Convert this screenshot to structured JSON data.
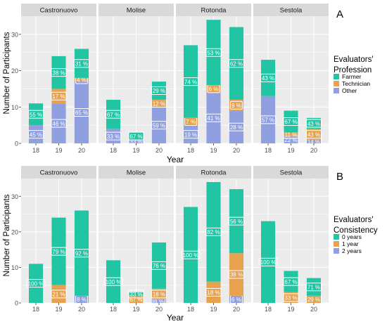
{
  "chart_data": [
    {
      "type": "bar",
      "stacked": true,
      "panel_letter": "A",
      "xlabel": "Year",
      "ylabel": "Number of Participants",
      "ylim": [
        0,
        35
      ],
      "yticks": [
        0,
        10,
        20,
        30
      ],
      "categories": [
        "18",
        "19",
        "20"
      ],
      "legend": {
        "title_lines": [
          "Evaluators'",
          "Profession"
        ],
        "placement": "right",
        "entries": [
          {
            "name": "Farmer",
            "color": "#21c4a3"
          },
          {
            "name": "Technician",
            "color": "#e6a24f"
          },
          {
            "name": "Other",
            "color": "#8f9fe0"
          }
        ]
      },
      "facets": [
        {
          "name": "Castronuovo",
          "bars": [
            {
              "year": "18",
              "segments": [
                {
                  "series": "Other",
                  "value": 5,
                  "label": "45 %"
                },
                {
                  "series": "Technician",
                  "value": 0,
                  "label": ""
                },
                {
                  "series": "Farmer",
                  "value": 6,
                  "label": "55 %"
                }
              ]
            },
            {
              "year": "19",
              "segments": [
                {
                  "series": "Other",
                  "value": 11,
                  "label": "46 %"
                },
                {
                  "series": "Technician",
                  "value": 4,
                  "label": "17 %"
                },
                {
                  "series": "Farmer",
                  "value": 9,
                  "label": "38 %"
                }
              ]
            },
            {
              "year": "20",
              "segments": [
                {
                  "series": "Other",
                  "value": 17,
                  "label": "65 %"
                },
                {
                  "series": "Technician",
                  "value": 1,
                  "label": "4 %"
                },
                {
                  "series": "Farmer",
                  "value": 8,
                  "label": "31 %"
                }
              ]
            }
          ]
        },
        {
          "name": "Molise",
          "bars": [
            {
              "year": "18",
              "segments": [
                {
                  "series": "Other",
                  "value": 4,
                  "label": "33 %"
                },
                {
                  "series": "Technician",
                  "value": 0,
                  "label": ""
                },
                {
                  "series": "Farmer",
                  "value": 8,
                  "label": "67 %"
                }
              ]
            },
            {
              "year": "19",
              "segments": [
                {
                  "series": "Other",
                  "value": 1,
                  "label": "33 %"
                },
                {
                  "series": "Technician",
                  "value": 0,
                  "label": ""
                },
                {
                  "series": "Farmer",
                  "value": 2,
                  "label": "67 %"
                }
              ]
            },
            {
              "year": "20",
              "segments": [
                {
                  "series": "Other",
                  "value": 10,
                  "label": "59 %"
                },
                {
                  "series": "Technician",
                  "value": 2,
                  "label": "12 %"
                },
                {
                  "series": "Farmer",
                  "value": 5,
                  "label": "29 %"
                }
              ]
            }
          ]
        },
        {
          "name": "Rotonda",
          "bars": [
            {
              "year": "18",
              "segments": [
                {
                  "series": "Other",
                  "value": 5,
                  "label": "19 %"
                },
                {
                  "series": "Technician",
                  "value": 2,
                  "label": "7 %"
                },
                {
                  "series": "Farmer",
                  "value": 20,
                  "label": "74 %"
                }
              ]
            },
            {
              "year": "19",
              "segments": [
                {
                  "series": "Other",
                  "value": 14,
                  "label": "41 %"
                },
                {
                  "series": "Technician",
                  "value": 2,
                  "label": "6 %"
                },
                {
                  "series": "Farmer",
                  "value": 18,
                  "label": "53 %"
                }
              ]
            },
            {
              "year": "20",
              "segments": [
                {
                  "series": "Other",
                  "value": 9,
                  "label": "28 %"
                },
                {
                  "series": "Technician",
                  "value": 3,
                  "label": "9 %"
                },
                {
                  "series": "Farmer",
                  "value": 20,
                  "label": "62 %"
                }
              ]
            }
          ]
        },
        {
          "name": "Sestola",
          "bars": [
            {
              "year": "18",
              "segments": [
                {
                  "series": "Other",
                  "value": 13,
                  "label": "57 %"
                },
                {
                  "series": "Technician",
                  "value": 0,
                  "label": ""
                },
                {
                  "series": "Farmer",
                  "value": 10,
                  "label": "43 %"
                }
              ]
            },
            {
              "year": "19",
              "segments": [
                {
                  "series": "Other",
                  "value": 2,
                  "label": "22 %"
                },
                {
                  "series": "Technician",
                  "value": 1,
                  "label": "11 %"
                },
                {
                  "series": "Farmer",
                  "value": 6,
                  "label": "67 %"
                }
              ]
            },
            {
              "year": "20",
              "segments": [
                {
                  "series": "Other",
                  "value": 1,
                  "label": "14 %"
                },
                {
                  "series": "Technician",
                  "value": 3,
                  "label": "43 %"
                },
                {
                  "series": "Farmer",
                  "value": 3,
                  "label": "43 %"
                }
              ]
            }
          ]
        }
      ]
    },
    {
      "type": "bar",
      "stacked": true,
      "panel_letter": "B",
      "xlabel": "Year",
      "ylabel": "Number of Participants",
      "ylim": [
        0,
        35
      ],
      "yticks": [
        0,
        10,
        20,
        30
      ],
      "categories": [
        "18",
        "19",
        "20"
      ],
      "legend": {
        "title_lines": [
          "Evaluators'",
          "Consistency"
        ],
        "placement": "right",
        "entries": [
          {
            "name": "0 years",
            "color": "#21c4a3"
          },
          {
            "name": "1 year",
            "color": "#e6a24f"
          },
          {
            "name": "2 years",
            "color": "#8f9fe0"
          }
        ]
      },
      "facets": [
        {
          "name": "Castronuovo",
          "bars": [
            {
              "year": "18",
              "segments": [
                {
                  "series": "2 years",
                  "value": 0,
                  "label": ""
                },
                {
                  "series": "1 year",
                  "value": 0,
                  "label": ""
                },
                {
                  "series": "0 years",
                  "value": 11,
                  "label": "100 %"
                }
              ]
            },
            {
              "year": "19",
              "segments": [
                {
                  "series": "2 years",
                  "value": 0,
                  "label": ""
                },
                {
                  "series": "1 year",
                  "value": 5,
                  "label": "21 %"
                },
                {
                  "series": "0 years",
                  "value": 19,
                  "label": "79 %"
                }
              ]
            },
            {
              "year": "20",
              "segments": [
                {
                  "series": "2 years",
                  "value": 2,
                  "label": "8 %"
                },
                {
                  "series": "1 year",
                  "value": 0,
                  "label": ""
                },
                {
                  "series": "0 years",
                  "value": 24,
                  "label": "92 %"
                }
              ]
            }
          ]
        },
        {
          "name": "Molise",
          "bars": [
            {
              "year": "18",
              "segments": [
                {
                  "series": "2 years",
                  "value": 0,
                  "label": ""
                },
                {
                  "series": "1 year",
                  "value": 0,
                  "label": ""
                },
                {
                  "series": "0 years",
                  "value": 12,
                  "label": "100 %"
                }
              ]
            },
            {
              "year": "19",
              "segments": [
                {
                  "series": "2 years",
                  "value": 0,
                  "label": ""
                },
                {
                  "series": "1 year",
                  "value": 2,
                  "label": "67 %"
                },
                {
                  "series": "0 years",
                  "value": 1,
                  "label": "33 %"
                }
              ]
            },
            {
              "year": "20",
              "segments": [
                {
                  "series": "2 years",
                  "value": 1,
                  "label": "6 %"
                },
                {
                  "series": "1 year",
                  "value": 3,
                  "label": "18 %"
                },
                {
                  "series": "0 years",
                  "value": 13,
                  "label": "76 %"
                }
              ]
            }
          ]
        },
        {
          "name": "Rotonda",
          "bars": [
            {
              "year": "18",
              "segments": [
                {
                  "series": "2 years",
                  "value": 0,
                  "label": ""
                },
                {
                  "series": "1 year",
                  "value": 0,
                  "label": ""
                },
                {
                  "series": "0 years",
                  "value": 27,
                  "label": "100 %"
                }
              ]
            },
            {
              "year": "19",
              "segments": [
                {
                  "series": "2 years",
                  "value": 0,
                  "label": ""
                },
                {
                  "series": "1 year",
                  "value": 6,
                  "label": "18 %"
                },
                {
                  "series": "0 years",
                  "value": 28,
                  "label": "82 %"
                }
              ]
            },
            {
              "year": "20",
              "segments": [
                {
                  "series": "2 years",
                  "value": 2,
                  "label": "6 %"
                },
                {
                  "series": "1 year",
                  "value": 12,
                  "label": "38 %"
                },
                {
                  "series": "0 years",
                  "value": 18,
                  "label": "56 %"
                }
              ]
            }
          ]
        },
        {
          "name": "Sestola",
          "bars": [
            {
              "year": "18",
              "segments": [
                {
                  "series": "2 years",
                  "value": 0,
                  "label": ""
                },
                {
                  "series": "1 year",
                  "value": 0,
                  "label": ""
                },
                {
                  "series": "0 years",
                  "value": 23,
                  "label": "100 %"
                }
              ]
            },
            {
              "year": "19",
              "segments": [
                {
                  "series": "2 years",
                  "value": 0,
                  "label": ""
                },
                {
                  "series": "1 year",
                  "value": 3,
                  "label": "33 %"
                },
                {
                  "series": "0 years",
                  "value": 6,
                  "label": "67 %"
                }
              ]
            },
            {
              "year": "20",
              "segments": [
                {
                  "series": "2 years",
                  "value": 0,
                  "label": ""
                },
                {
                  "series": "1 year",
                  "value": 2,
                  "label": "29 %"
                },
                {
                  "series": "0 years",
                  "value": 5,
                  "label": "71 %"
                }
              ]
            }
          ]
        }
      ]
    }
  ],
  "colors": {
    "panel_background": "#ebebeb",
    "grid_line": "#ffffff",
    "strip_background": "#d9d9d9",
    "axis_text": "#4d4d4d"
  }
}
